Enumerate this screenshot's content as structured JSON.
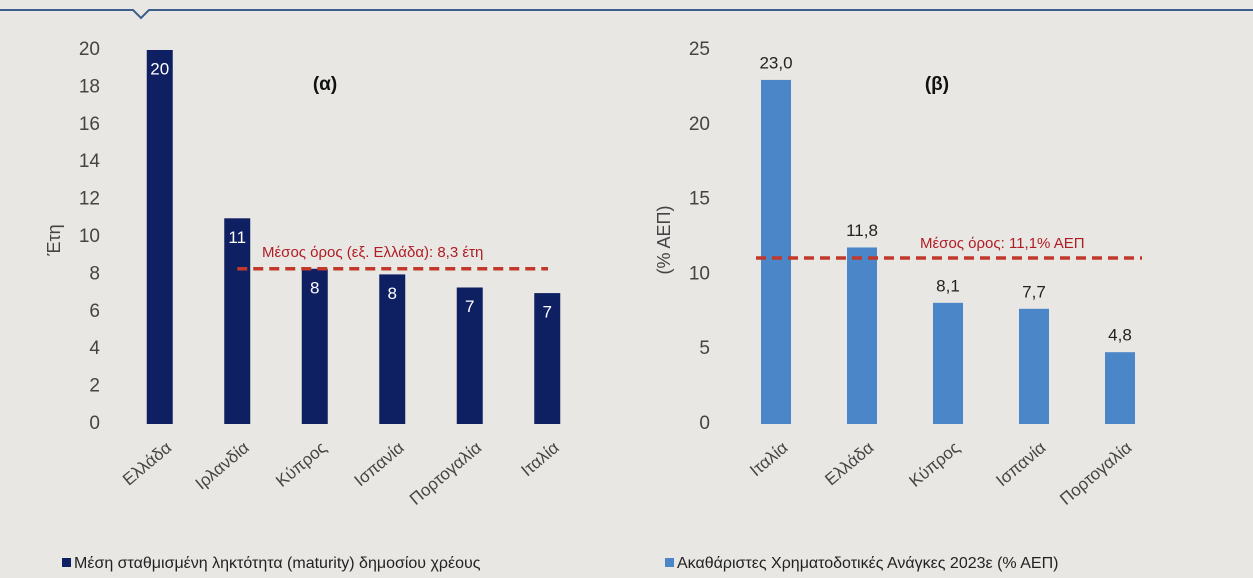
{
  "chart_data": [
    {
      "type": "bar",
      "title": "(α)",
      "y_label": "Έτη",
      "categories": [
        "Ελλάδα",
        "Ιρλανδία",
        "Κύπρος",
        "Ισπανία",
        "Πορτογαλία",
        "Ιταλία"
      ],
      "series": [
        {
          "name": "Μέση σταθμισμένη ληκτότητα (maturity) δημοσίου χρέους",
          "color": "#0f2062",
          "values": [
            20,
            11,
            8.3,
            8.0,
            7.3,
            7.0
          ],
          "value_labels": [
            "20",
            "11",
            "8",
            "8",
            "7",
            "7"
          ]
        }
      ],
      "value_label_position": "inside",
      "reference_line": {
        "value": 8.3,
        "label": "Μέσος όρος (εξ. Ελλάδα): 8,3 έτη",
        "color": "#c0392b"
      },
      "ylim": [
        0,
        20
      ],
      "yticks": [
        0,
        2,
        4,
        6,
        8,
        10,
        12,
        14,
        16,
        18,
        20
      ],
      "grid": false
    },
    {
      "type": "bar",
      "title": "(β)",
      "y_label": "(% ΑΕΠ)",
      "categories": [
        "Ιταλία",
        "Ελλάδα",
        "Κύπρος",
        "Ισπανία",
        "Πορτογαλία"
      ],
      "series": [
        {
          "name": "Ακαθάριστες Χρηματοδοτικές Ανάγκες 2023ε (% ΑΕΠ)",
          "color": "#4a86c8",
          "values": [
            23.0,
            11.8,
            8.1,
            7.7,
            4.8
          ],
          "value_labels": [
            "23,0",
            "11,8",
            "8,1",
            "7,7",
            "4,8"
          ]
        }
      ],
      "value_label_position": "outside",
      "reference_line": {
        "value": 11.1,
        "label": "Μέσος όρος: 11,1% ΑΕΠ",
        "color": "#c0392b"
      },
      "ylim": [
        0,
        25
      ],
      "yticks": [
        0,
        5,
        10,
        15,
        20,
        25
      ],
      "grid": false
    }
  ]
}
